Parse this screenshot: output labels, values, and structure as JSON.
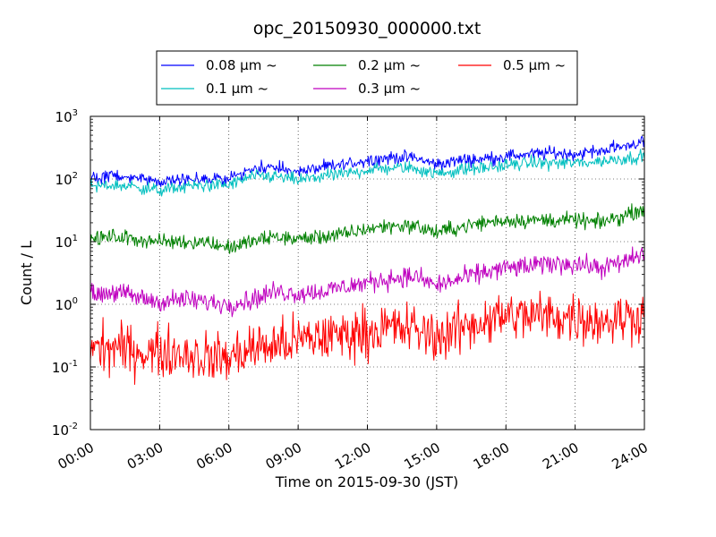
{
  "chart_data": {
    "type": "line",
    "title": "opc_20150930_000000.txt",
    "xlabel": "Time on 2015-09-30 (JST)",
    "ylabel": "Count / L",
    "yscale": "log",
    "xlim": [
      "00:00",
      "24:00"
    ],
    "ylim": [
      0.01,
      1000
    ],
    "grid": true,
    "legend_position": "top",
    "x_ticks": [
      "00:00",
      "03:00",
      "06:00",
      "09:00",
      "12:00",
      "15:00",
      "18:00",
      "21:00",
      "24:00"
    ],
    "y_ticks": [
      {
        "value": 0.01,
        "base": "10",
        "exp": "-2"
      },
      {
        "value": 0.1,
        "base": "10",
        "exp": "-1"
      },
      {
        "value": 1,
        "base": "10",
        "exp": "0"
      },
      {
        "value": 10,
        "base": "10",
        "exp": "1"
      },
      {
        "value": 100,
        "base": "10",
        "exp": "2"
      },
      {
        "value": 1000,
        "base": "10",
        "exp": "3"
      }
    ],
    "series": [
      {
        "name": "0.08 μm ~",
        "color": "#0000ff",
        "noise": 0.05,
        "x": [
          "00:00",
          "01:00",
          "02:00",
          "03:00",
          "04:00",
          "05:00",
          "06:00",
          "07:00",
          "08:00",
          "09:00",
          "10:00",
          "11:00",
          "12:00",
          "13:00",
          "14:00",
          "15:00",
          "16:00",
          "17:00",
          "18:00",
          "19:00",
          "20:00",
          "21:00",
          "22:00",
          "23:00",
          "24:00"
        ],
        "y": [
          100,
          115,
          100,
          90,
          100,
          100,
          100,
          150,
          150,
          130,
          150,
          170,
          200,
          220,
          220,
          170,
          200,
          210,
          230,
          250,
          260,
          250,
          280,
          330,
          400
        ]
      },
      {
        "name": "0.1 μm ~",
        "color": "#00bfbf",
        "noise": 0.05,
        "x": [
          "00:00",
          "01:00",
          "02:00",
          "03:00",
          "04:00",
          "05:00",
          "06:00",
          "07:00",
          "08:00",
          "09:00",
          "10:00",
          "11:00",
          "12:00",
          "13:00",
          "14:00",
          "15:00",
          "16:00",
          "17:00",
          "18:00",
          "19:00",
          "20:00",
          "21:00",
          "22:00",
          "23:00",
          "24:00"
        ],
        "y": [
          75,
          80,
          75,
          65,
          75,
          80,
          80,
          110,
          110,
          95,
          110,
          120,
          140,
          150,
          150,
          120,
          140,
          150,
          165,
          180,
          180,
          180,
          190,
          210,
          230
        ]
      },
      {
        "name": "0.2 μm ~",
        "color": "#008000",
        "noise": 0.06,
        "x": [
          "00:00",
          "01:00",
          "02:00",
          "03:00",
          "04:00",
          "05:00",
          "06:00",
          "07:00",
          "08:00",
          "09:00",
          "10:00",
          "11:00",
          "12:00",
          "13:00",
          "14:00",
          "15:00",
          "16:00",
          "17:00",
          "18:00",
          "19:00",
          "20:00",
          "21:00",
          "22:00",
          "23:00",
          "24:00"
        ],
        "y": [
          11,
          12,
          11,
          10,
          10,
          10,
          8,
          10,
          12,
          11,
          12,
          13,
          16,
          18,
          18,
          14,
          17,
          20,
          22,
          22,
          22,
          22,
          20,
          25,
          35
        ]
      },
      {
        "name": "0.3 μm ~",
        "color": "#bf00bf",
        "noise": 0.08,
        "x": [
          "00:00",
          "01:00",
          "02:00",
          "03:00",
          "04:00",
          "05:00",
          "06:00",
          "07:00",
          "08:00",
          "09:00",
          "10:00",
          "11:00",
          "12:00",
          "13:00",
          "14:00",
          "15:00",
          "16:00",
          "17:00",
          "18:00",
          "19:00",
          "20:00",
          "21:00",
          "22:00",
          "23:00",
          "24:00"
        ],
        "y": [
          1.4,
          1.6,
          1.3,
          1.1,
          1.2,
          1.1,
          1.0,
          1.2,
          1.6,
          1.5,
          1.6,
          1.9,
          2.2,
          2.6,
          2.8,
          2.0,
          2.5,
          3.2,
          3.8,
          4.0,
          4.5,
          4.5,
          3.8,
          4.5,
          6.5
        ]
      },
      {
        "name": "0.5 μm ~",
        "color": "#ff0000",
        "noise": 0.2,
        "x": [
          "00:00",
          "01:00",
          "02:00",
          "03:00",
          "04:00",
          "05:00",
          "06:00",
          "07:00",
          "08:00",
          "09:00",
          "10:00",
          "11:00",
          "12:00",
          "13:00",
          "14:00",
          "15:00",
          "16:00",
          "17:00",
          "18:00",
          "19:00",
          "20:00",
          "21:00",
          "22:00",
          "23:00",
          "24:00"
        ],
        "y": [
          0.2,
          0.2,
          0.18,
          0.17,
          0.17,
          0.14,
          0.14,
          0.2,
          0.22,
          0.26,
          0.3,
          0.33,
          0.37,
          0.42,
          0.4,
          0.3,
          0.4,
          0.55,
          0.65,
          0.65,
          0.65,
          0.62,
          0.55,
          0.6,
          0.7
        ]
      }
    ]
  }
}
